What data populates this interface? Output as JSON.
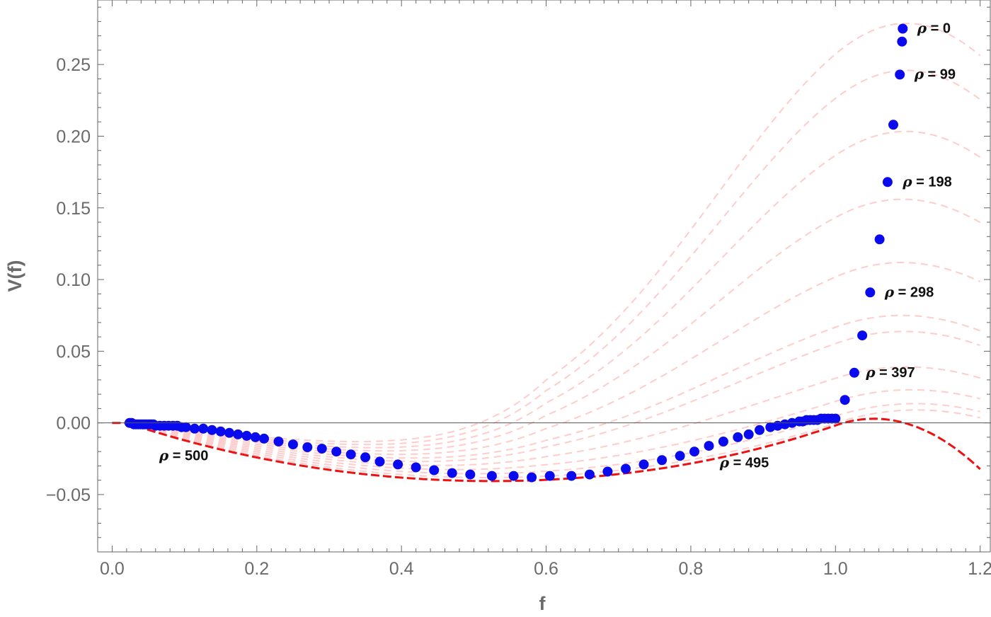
{
  "chart_data": {
    "type": "line",
    "xlabel": "f",
    "ylabel": "V(f)",
    "xlim": [
      -0.02,
      1.215
    ],
    "ylim": [
      -0.09,
      0.295
    ],
    "x_ticks": [
      0.0,
      0.2,
      0.4,
      0.6,
      0.8,
      1.0,
      1.2
    ],
    "x_tick_labels": [
      "0.0",
      "0.2",
      "0.4",
      "0.6",
      "0.8",
      "1.0",
      "1.2"
    ],
    "y_ticks": [
      -0.05,
      0.0,
      0.05,
      0.1,
      0.15,
      0.2,
      0.25
    ],
    "y_tick_labels": [
      "−0.05",
      "0.00",
      "0.05",
      "0.10",
      "0.15",
      "0.20",
      "0.25"
    ],
    "grid": false,
    "frame": true,
    "zero_line": true,
    "colors": {
      "family_curves": "#ffcccc",
      "final_curve": "#ee1111",
      "points": "#0a0aee",
      "axis": "#666666",
      "zero_line": "#555555"
    },
    "series": [
      {
        "style": "dashed",
        "description_type": "potential family",
        "peak_values": [
          0.275,
          0.266,
          0.243,
          0.208,
          0.168,
          0.128,
          0.091,
          0.061,
          0.035,
          0.016,
          0.003
        ],
        "peak_positions": [
          1.093,
          1.092,
          1.089,
          1.08,
          1.072,
          1.061,
          1.048,
          1.037,
          1.026,
          1.013,
          1.0
        ],
        "min_value_early": -0.015,
        "min_value_final": -0.037,
        "end_value_final": -0.069
      },
      {
        "style": "points",
        "x": [
          0.024,
          0.027,
          0.03,
          0.033,
          0.036,
          0.039,
          0.042,
          0.045,
          0.048,
          0.051,
          0.054,
          0.057,
          0.06,
          0.066,
          0.072,
          0.078,
          0.084,
          0.09,
          0.096,
          0.102,
          0.114,
          0.126,
          0.138,
          0.15,
          0.162,
          0.174,
          0.186,
          0.198,
          0.21,
          0.23,
          0.25,
          0.27,
          0.29,
          0.31,
          0.33,
          0.35,
          0.37,
          0.395,
          0.42,
          0.445,
          0.47,
          0.495,
          0.525,
          0.555,
          0.58,
          0.605,
          0.635,
          0.66,
          0.685,
          0.71,
          0.735,
          0.76,
          0.785,
          0.805,
          0.825,
          0.845,
          0.865,
          0.88,
          0.895,
          0.91,
          0.92,
          0.93,
          0.94,
          0.95,
          0.955,
          0.96,
          0.965,
          0.97,
          0.975,
          0.98,
          0.985,
          0.99,
          0.995,
          1.0,
          1.013,
          1.026,
          1.037,
          1.048,
          1.061,
          1.072,
          1.08,
          1.089,
          1.092,
          1.093
        ],
        "y": [
          0.0,
          0.0,
          -0.001,
          -0.001,
          -0.001,
          -0.001,
          -0.001,
          -0.001,
          -0.001,
          -0.001,
          -0.001,
          -0.001,
          -0.002,
          -0.002,
          -0.002,
          -0.002,
          -0.002,
          -0.002,
          -0.003,
          -0.003,
          -0.004,
          -0.004,
          -0.005,
          -0.006,
          -0.007,
          -0.008,
          -0.009,
          -0.01,
          -0.011,
          -0.013,
          -0.015,
          -0.017,
          -0.018,
          -0.02,
          -0.022,
          -0.024,
          -0.027,
          -0.029,
          -0.031,
          -0.033,
          -0.035,
          -0.036,
          -0.037,
          -0.037,
          -0.038,
          -0.037,
          -0.037,
          -0.036,
          -0.034,
          -0.032,
          -0.029,
          -0.026,
          -0.023,
          -0.02,
          -0.016,
          -0.013,
          -0.01,
          -0.008,
          -0.005,
          -0.003,
          -0.002,
          -0.001,
          0.0,
          0.001,
          0.001,
          0.002,
          0.002,
          0.002,
          0.002,
          0.003,
          0.003,
          0.003,
          0.003,
          0.003,
          0.016,
          0.035,
          0.061,
          0.091,
          0.128,
          0.168,
          0.208,
          0.243,
          0.266,
          0.275
        ]
      }
    ],
    "annotations": [
      {
        "rho": "ρ",
        "text": " = 0",
        "x": 1.113,
        "y": 0.272
      },
      {
        "rho": "ρ",
        "text": " = 99",
        "x": 1.109,
        "y": 0.24
      },
      {
        "rho": "ρ",
        "text": " = 198",
        "x": 1.093,
        "y": 0.165
      },
      {
        "rho": "ρ",
        "text": " = 298",
        "x": 1.068,
        "y": 0.088
      },
      {
        "rho": "ρ",
        "text": " = 397",
        "x": 1.042,
        "y": 0.032
      },
      {
        "rho": "ρ",
        "text": " = 500",
        "x": 0.065,
        "y": -0.026
      },
      {
        "rho": "ρ",
        "text": " = 495",
        "x": 0.84,
        "y": -0.031
      }
    ]
  }
}
